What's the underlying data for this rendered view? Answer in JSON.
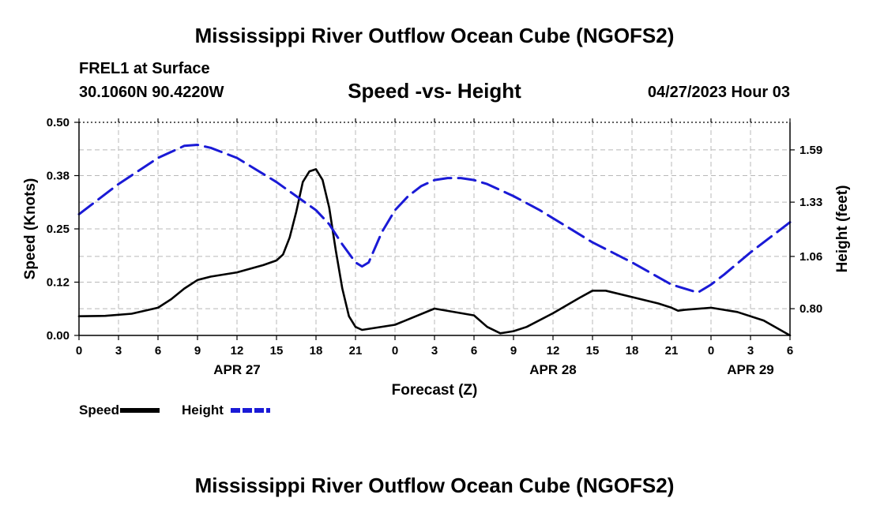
{
  "header": {
    "title": "Mississippi River Outflow Ocean Cube (NGOFS2)",
    "station": "FREL1 at Surface",
    "coordinates": "30.1060N  90.4220W",
    "subtitle": "Speed -vs- Height",
    "timestamp": "04/27/2023 Hour 03"
  },
  "footer": {
    "title": "Mississippi River Outflow Ocean Cube (NGOFS2)"
  },
  "colors": {
    "speed": "#000000",
    "height": "#1a1ad6",
    "grid": "#b8b8b8"
  },
  "chart_data": {
    "type": "line",
    "title": "Speed -vs- Height",
    "xlabel": "Forecast (Z)",
    "ylabel_left": "Speed (Knots)",
    "ylabel_right": "Height (feet)",
    "x_unit": "hours since Apr 27 00Z",
    "xlim": [
      0,
      54
    ],
    "ylim_left": [
      0,
      0.5
    ],
    "ylim_right": [
      0.667,
      1.727
    ],
    "x_ticks": [
      0,
      3,
      6,
      9,
      12,
      15,
      18,
      21,
      24,
      27,
      30,
      33,
      36,
      39,
      42,
      45,
      48,
      51,
      54
    ],
    "x_tick_labels": [
      "0",
      "3",
      "6",
      "9",
      "12",
      "15",
      "18",
      "21",
      "0",
      "3",
      "6",
      "9",
      "12",
      "15",
      "18",
      "21",
      "0",
      "3",
      "6"
    ],
    "date_labels": [
      {
        "x": 12,
        "label": "APR 27"
      },
      {
        "x": 36,
        "label": "APR 28"
      },
      {
        "x": 51,
        "label": "APR 29"
      }
    ],
    "y_left_ticks": [
      0.0,
      0.125,
      0.25,
      0.375,
      0.5
    ],
    "y_left_tick_labels": [
      "0.00",
      "0.12",
      "0.25",
      "0.38",
      "0.50"
    ],
    "y_right_ticks": [
      0.8,
      1.06,
      1.33,
      1.59
    ],
    "y_right_tick_labels": [
      "0.80",
      "1.06",
      "1.33",
      "1.59"
    ],
    "grid": true,
    "legend": [
      {
        "name": "Speed",
        "style": "solid"
      },
      {
        "name": "Height",
        "style": "dashed"
      }
    ],
    "series": [
      {
        "name": "Speed",
        "axis": "left",
        "style": "solid",
        "x": [
          0,
          2,
          4,
          6,
          7,
          8,
          9,
          10,
          12,
          14,
          15,
          15.5,
          16,
          16.5,
          17,
          17.5,
          18,
          18.5,
          19,
          19.5,
          20,
          20.5,
          21,
          21.5,
          24,
          27,
          30,
          31,
          32,
          33,
          34,
          36,
          38,
          39,
          40,
          42,
          44,
          45,
          45.5,
          46,
          48,
          50,
          52,
          54
        ],
        "values": [
          0.045,
          0.046,
          0.051,
          0.065,
          0.085,
          0.11,
          0.13,
          0.138,
          0.148,
          0.165,
          0.176,
          0.19,
          0.23,
          0.29,
          0.36,
          0.385,
          0.39,
          0.365,
          0.3,
          0.2,
          0.11,
          0.045,
          0.02,
          0.013,
          0.025,
          0.063,
          0.047,
          0.02,
          0.005,
          0.01,
          0.02,
          0.052,
          0.088,
          0.105,
          0.105,
          0.09,
          0.075,
          0.065,
          0.058,
          0.06,
          0.065,
          0.055,
          0.035,
          0.0
        ]
      },
      {
        "name": "Height",
        "axis": "right",
        "style": "dashed",
        "x": [
          0,
          3,
          6,
          8,
          9,
          10,
          12,
          15,
          18,
          19,
          20,
          21,
          21.5,
          22,
          23,
          24,
          25,
          26,
          27,
          28,
          29,
          30,
          31,
          33,
          35,
          37,
          39,
          42,
          45,
          47,
          48,
          49,
          51,
          54
        ],
        "values": [
          1.27,
          1.42,
          1.55,
          1.61,
          1.615,
          1.6,
          1.55,
          1.43,
          1.29,
          1.22,
          1.12,
          1.03,
          1.01,
          1.03,
          1.18,
          1.29,
          1.36,
          1.41,
          1.44,
          1.45,
          1.45,
          1.44,
          1.42,
          1.36,
          1.29,
          1.21,
          1.13,
          1.03,
          0.92,
          0.88,
          0.92,
          0.97,
          1.08,
          1.23
        ]
      }
    ]
  }
}
